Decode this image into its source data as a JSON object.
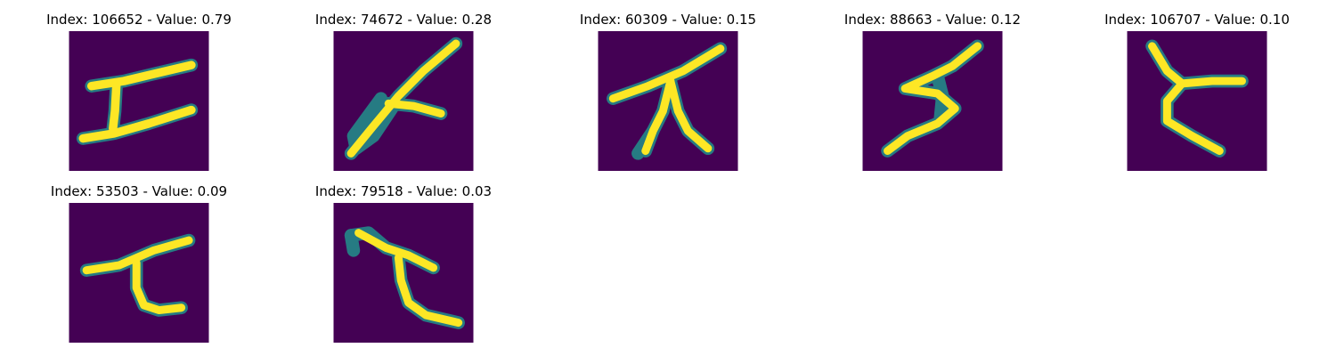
{
  "colors": {
    "background": "#440154",
    "stroke_mid": "#21918c",
    "stroke_bright": "#fde725",
    "page": "#ffffff"
  },
  "panels": [
    {
      "title": "Index: 106652 - Value: 0.79"
    },
    {
      "title": "Index: 74672 - Value: 0.28"
    },
    {
      "title": "Index: 60309 - Value: 0.15"
    },
    {
      "title": "Index: 88663 - Value: 0.12"
    },
    {
      "title": "Index: 106707 - Value: 0.10"
    },
    {
      "title": "Index: 53503 - Value: 0.09"
    },
    {
      "title": "Index: 79518 - Value: 0.03"
    }
  ]
}
